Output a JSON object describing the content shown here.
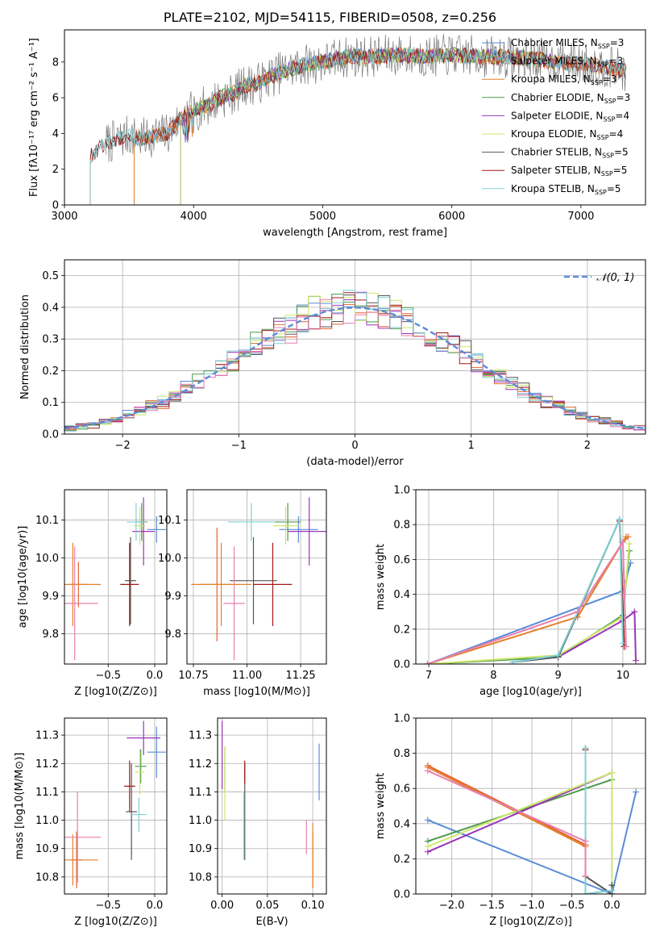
{
  "page_title": "PLATE=2102, MJD=54115, FIBERID=0508, z=0.256",
  "colors": {
    "Chabrier MILES": "#5b8bd7",
    "Salpeter MILES": "#e3652f",
    "Kroupa MILES": "#e3812b",
    "Chabrier ELODIE": "#4d9a4d",
    "Salpeter ELODIE": "#9a35b8",
    "Kroupa ELODIE": "#cde86b",
    "Chabrier STELIB": "#555555",
    "Salpeter STELIB": "#a01818",
    "Kroupa STELIB": "#7fcfd3",
    "pink": "#e87fae",
    "normal": "#5b8bd7",
    "grid": "#b0b0b0"
  },
  "chart_data": [
    {
      "id": "spectrum",
      "type": "line",
      "xlabel": "wavelength [Angstrom, rest frame]",
      "ylabel": "Flux [fλ10⁻¹⁷ erg cm⁻² s⁻¹ A⁻¹]",
      "xlim": [
        3000,
        7500
      ],
      "ylim": [
        0,
        9.8
      ],
      "xticks": [
        3000,
        4000,
        5000,
        6000,
        7000
      ],
      "yticks": [
        0,
        2,
        4,
        6,
        8
      ],
      "grid": false,
      "legend_position": "top-right",
      "legend": [
        {
          "name": "Chabrier MILES, N",
          "sub": "SSP",
          "suffix": "=3",
          "color_key": "Chabrier MILES"
        },
        {
          "name": "Salpeter MILES, N",
          "sub": "SSP",
          "suffix": "=3",
          "color_key": "Salpeter MILES"
        },
        {
          "name": "Kroupa MILES, N",
          "sub": "SSP",
          "suffix": "=3",
          "color_key": "Kroupa MILES"
        },
        {
          "name": "Chabrier ELODIE, N",
          "sub": "SSP",
          "suffix": "=3",
          "color_key": "Chabrier ELODIE"
        },
        {
          "name": "Salpeter ELODIE, N",
          "sub": "SSP",
          "suffix": "=4",
          "color_key": "Salpeter ELODIE"
        },
        {
          "name": "Kroupa ELODIE, N",
          "sub": "SSP",
          "suffix": "=4",
          "color_key": "Kroupa ELODIE"
        },
        {
          "name": "Chabrier STELIB, N",
          "sub": "SSP",
          "suffix": "=5",
          "color_key": "Chabrier STELIB"
        },
        {
          "name": "Salpeter STELIB, N",
          "sub": "SSP",
          "suffix": "=5",
          "color_key": "Salpeter STELIB"
        },
        {
          "name": "Kroupa STELIB, N",
          "sub": "SSP",
          "suffix": "=5",
          "color_key": "Kroupa STELIB"
        }
      ],
      "continuum": {
        "x": [
          3200,
          3300,
          3400,
          3500,
          3600,
          3700,
          3800,
          3900,
          4000,
          4100,
          4200,
          4300,
          4400,
          4500,
          4600,
          4700,
          4800,
          4900,
          5000,
          5200,
          5400,
          5600,
          5800,
          6000,
          6200,
          6400,
          6600,
          6800,
          7000,
          7200,
          7350
        ],
        "y": [
          2.7,
          3.4,
          3.6,
          3.9,
          3.7,
          3.9,
          4.0,
          4.8,
          5.3,
          5.5,
          6.0,
          6.2,
          6.7,
          6.8,
          7.2,
          7.5,
          7.7,
          7.9,
          8.0,
          8.3,
          8.3,
          8.4,
          8.3,
          8.4,
          8.3,
          8.3,
          8.2,
          8.0,
          7.9,
          7.7,
          7.5
        ]
      },
      "series": [
        {
          "name": "Chabrier MILES",
          "x_start": 3540,
          "x_end": 7350
        },
        {
          "name": "Salpeter MILES",
          "x_start": 3540,
          "x_end": 7350
        },
        {
          "name": "Kroupa MILES",
          "x_start": 3540,
          "x_end": 7350
        },
        {
          "name": "Chabrier ELODIE",
          "x_start": 3900,
          "x_end": 6800
        },
        {
          "name": "Salpeter ELODIE",
          "x_start": 3900,
          "x_end": 6800
        },
        {
          "name": "Kroupa ELODIE",
          "x_start": 3900,
          "x_end": 6800
        },
        {
          "name": "Chabrier STELIB",
          "x_start": 3200,
          "x_end": 7350
        },
        {
          "name": "Salpeter STELIB",
          "x_start": 3200,
          "x_end": 7350
        },
        {
          "name": "Kroupa STELIB",
          "x_start": 3200,
          "x_end": 7350
        }
      ],
      "data_series": {
        "name": "data",
        "x_start": 3320,
        "x_end": 7350
      }
    },
    {
      "id": "residuals",
      "type": "line",
      "xlabel": "(data-model)/error",
      "ylabel": "Normed distribution",
      "xlim": [
        -2.5,
        2.5
      ],
      "ylim": [
        0,
        0.55
      ],
      "xticks": [
        -2,
        -1,
        0,
        1,
        2
      ],
      "xtick_labels": [
        "−2",
        "−1",
        "0",
        "1",
        "2"
      ],
      "yticks": [
        0.0,
        0.1,
        0.2,
        0.3,
        0.4,
        0.5
      ],
      "grid": true,
      "bin_width": 0.1,
      "legend_position": "top-right",
      "legend": [
        {
          "name": "𝒩(0, 1)",
          "color_key": "normal"
        }
      ]
    },
    {
      "id": "age_vs_Z",
      "type": "scatter",
      "xlabel": "Z [log10(Z/Z⊙)]",
      "ylabel": "age  [log10(age/yr)]",
      "xlim": [
        -0.97,
        0.13
      ],
      "ylim": [
        9.72,
        10.18
      ],
      "xticks": [
        -0.5,
        0.0
      ],
      "xtick_labels": [
        "−0.5",
        "0.0"
      ],
      "yticks": [
        9.8,
        9.9,
        10.0,
        10.1
      ],
      "grid": true,
      "points": [
        {
          "c": "Chabrier MILES",
          "x": 0.02,
          "y": 10.075,
          "xerr": 0.1,
          "yerr": 0.035
        },
        {
          "c": "Salpeter MILES",
          "x": -0.82,
          "y": 9.93,
          "xerr": 0.1,
          "yerr": 0.06
        },
        {
          "c": "Kroupa MILES",
          "x": -0.88,
          "y": 9.93,
          "xerr": 0.3,
          "yerr": 0.11
        },
        {
          "c": "Chabrier ELODIE",
          "x": -0.14,
          "y": 10.095,
          "xerr": 0.06,
          "yerr": 0.05
        },
        {
          "c": "Salpeter ELODIE",
          "x": -0.12,
          "y": 10.07,
          "xerr": 0.12,
          "yerr": 0.09
        },
        {
          "c": "Kroupa ELODIE",
          "x": -0.16,
          "y": 10.085,
          "xerr": 0.06,
          "yerr": 0.05
        },
        {
          "c": "Chabrier STELIB",
          "x": -0.26,
          "y": 9.94,
          "xerr": 0.06,
          "yerr": 0.115
        },
        {
          "c": "Salpeter STELIB",
          "x": -0.27,
          "y": 9.93,
          "xerr": 0.1,
          "yerr": 0.11
        },
        {
          "c": "Kroupa STELIB",
          "x": -0.2,
          "y": 10.095,
          "xerr": 0.1,
          "yerr": 0.05
        },
        {
          "c": "pink",
          "x": -0.86,
          "y": 9.88,
          "xerr": 0.25,
          "yerr": 0.15
        }
      ]
    },
    {
      "id": "age_vs_mass",
      "type": "scatter",
      "xlabel": "mass [log10(M/M⊙)]",
      "ylabel": "",
      "xlim": [
        10.72,
        11.37
      ],
      "ylim": [
        9.72,
        10.18
      ],
      "xticks": [
        10.75,
        11.0,
        11.25
      ],
      "xtick_labels": [
        "10.75",
        "11.00",
        "11.25"
      ],
      "yticks": [
        9.8,
        9.9,
        10.0,
        10.1
      ],
      "grid": true,
      "points": [
        {
          "c": "Chabrier MILES",
          "x": 11.24,
          "y": 10.075,
          "xerr": 0.09,
          "yerr": 0.035
        },
        {
          "c": "Salpeter MILES",
          "x": 10.86,
          "y": 9.93,
          "xerr": 0.08,
          "yerr": 0.15
        },
        {
          "c": "Kroupa MILES",
          "x": 10.88,
          "y": 9.93,
          "xerr": 0.14,
          "yerr": 0.11
        },
        {
          "c": "Chabrier ELODIE",
          "x": 11.19,
          "y": 10.095,
          "xerr": 0.06,
          "yerr": 0.05
        },
        {
          "c": "Salpeter ELODIE",
          "x": 11.29,
          "y": 10.07,
          "xerr": 0.1,
          "yerr": 0.09
        },
        {
          "c": "Kroupa ELODIE",
          "x": 11.18,
          "y": 10.085,
          "xerr": 0.06,
          "yerr": 0.05
        },
        {
          "c": "Chabrier STELIB",
          "x": 11.03,
          "y": 9.94,
          "xerr": 0.11,
          "yerr": 0.115
        },
        {
          "c": "Salpeter STELIB",
          "x": 11.12,
          "y": 9.93,
          "xerr": 0.09,
          "yerr": 0.11
        },
        {
          "c": "Kroupa STELIB",
          "x": 11.02,
          "y": 10.095,
          "xerr": 0.11,
          "yerr": 0.05
        },
        {
          "c": "pink",
          "x": 10.94,
          "y": 9.88,
          "xerr": 0.05,
          "yerr": 0.15
        }
      ]
    },
    {
      "id": "weight_vs_age",
      "type": "line",
      "xlabel": "age  [log10(age/yr)]",
      "ylabel": "mass weight",
      "xlim": [
        6.8,
        10.35
      ],
      "ylim": [
        0,
        1.0
      ],
      "xticks": [
        7,
        8,
        9,
        10
      ],
      "yticks": [
        0.0,
        0.2,
        0.4,
        0.6,
        0.8,
        1.0
      ],
      "grid": true,
      "series": [
        {
          "c": "Chabrier MILES",
          "x": [
            6.98,
            10.0,
            10.12
          ],
          "y": [
            0.0,
            0.42,
            0.58
          ]
        },
        {
          "c": "Salpeter MILES",
          "x": [
            9.3,
            10.0,
            10.08
          ],
          "y": [
            0.27,
            0.7,
            0.73
          ]
        },
        {
          "c": "Kroupa MILES",
          "x": [
            6.98,
            9.3,
            10.0,
            10.05
          ],
          "y": [
            0.0,
            0.27,
            0.7,
            0.73
          ]
        },
        {
          "c": "Chabrier ELODIE",
          "x": [
            6.98,
            9.0,
            10.0,
            10.1
          ],
          "y": [
            0.0,
            0.04,
            0.28,
            0.65
          ]
        },
        {
          "c": "Salpeter ELODIE",
          "x": [
            9.0,
            10.0,
            10.18,
            10.2
          ],
          "y": [
            0.04,
            0.25,
            0.3,
            0.02
          ]
        },
        {
          "c": "Kroupa ELODIE",
          "x": [
            6.98,
            9.0,
            10.0,
            10.1
          ],
          "y": [
            0.0,
            0.05,
            0.27,
            0.69
          ]
        },
        {
          "c": "Chabrier STELIB",
          "x": [
            8.3,
            9.0,
            9.95,
            10.02
          ],
          "y": [
            0.01,
            0.04,
            0.83,
            0.1
          ]
        },
        {
          "c": "Salpeter STELIB",
          "x": [
            9.95,
            10.02
          ],
          "y": [
            0.82,
            0.1
          ]
        },
        {
          "c": "Kroupa STELIB",
          "x": [
            8.3,
            9.0,
            9.95,
            10.0
          ],
          "y": [
            0.01,
            0.05,
            0.83,
            0.12
          ]
        },
        {
          "c": "pink",
          "x": [
            6.98,
            9.3,
            10.0,
            10.05
          ],
          "y": [
            0.0,
            0.3,
            0.7,
            0.1
          ]
        }
      ]
    },
    {
      "id": "mass_vs_Z",
      "type": "scatter",
      "xlabel": "Z [log10(Z/Z⊙)]",
      "ylabel": "mass [log10(M/M⊙)]",
      "xlim": [
        -0.97,
        0.13
      ],
      "ylim": [
        10.74,
        11.36
      ],
      "xticks": [
        -0.5,
        0.0
      ],
      "xtick_labels": [
        "−0.5",
        "0.0"
      ],
      "yticks": [
        10.8,
        10.9,
        11.0,
        11.1,
        11.2,
        11.3
      ],
      "grid": true,
      "points": [
        {
          "c": "Chabrier MILES",
          "x": 0.02,
          "y": 11.24,
          "xerr": 0.1,
          "yerr": 0.09
        },
        {
          "c": "Salpeter MILES",
          "x": -0.84,
          "y": 10.86,
          "xerr": 0.06,
          "yerr": 0.1
        },
        {
          "c": "Kroupa MILES",
          "x": -0.88,
          "y": 10.86,
          "xerr": 0.27,
          "yerr": 0.09
        },
        {
          "c": "Chabrier ELODIE",
          "x": -0.15,
          "y": 11.19,
          "xerr": 0.06,
          "yerr": 0.06
        },
        {
          "c": "Salpeter ELODIE",
          "x": -0.12,
          "y": 11.29,
          "xerr": 0.18,
          "yerr": 0.06
        },
        {
          "c": "Kroupa ELODIE",
          "x": -0.16,
          "y": 11.17,
          "xerr": 0.05,
          "yerr": 0.08
        },
        {
          "c": "Chabrier STELIB",
          "x": -0.25,
          "y": 11.03,
          "xerr": 0.06,
          "yerr": 0.17
        },
        {
          "c": "Salpeter STELIB",
          "x": -0.27,
          "y": 11.12,
          "xerr": 0.06,
          "yerr": 0.09
        },
        {
          "c": "Kroupa STELIB",
          "x": -0.17,
          "y": 11.02,
          "xerr": 0.08,
          "yerr": 0.06
        },
        {
          "c": "pink",
          "x": -0.83,
          "y": 10.94,
          "xerr": 0.25,
          "yerr": 0.16
        }
      ]
    },
    {
      "id": "mass_vs_EBV",
      "type": "scatter",
      "xlabel": "E(B-V)",
      "ylabel": "",
      "xlim": [
        -0.005,
        0.115
      ],
      "ylim": [
        10.74,
        11.36
      ],
      "xticks": [
        0.0,
        0.05,
        0.1
      ],
      "xtick_labels": [
        "0.00",
        "0.05",
        "0.10"
      ],
      "yticks": [
        10.8,
        10.9,
        11.0,
        11.1,
        11.2,
        11.3
      ],
      "grid": true,
      "points": [
        {
          "c": "Chabrier MILES",
          "x": 0.107,
          "y": 11.17,
          "xerr": 0,
          "yerr": 0.1
        },
        {
          "c": "Salpeter MILES",
          "x": 0.1,
          "y": 10.86,
          "xerr": 0,
          "yerr": 0.1
        },
        {
          "c": "Kroupa MILES",
          "x": 0.1,
          "y": 10.88,
          "xerr": 0,
          "yerr": 0.11
        },
        {
          "c": "Chabrier ELODIE",
          "x": 0.003,
          "y": 11.18,
          "xerr": 0,
          "yerr": 0.08
        },
        {
          "c": "Salpeter ELODIE",
          "x": 0.0,
          "y": 11.23,
          "xerr": 0,
          "yerr": 0.12
        },
        {
          "c": "Kroupa ELODIE",
          "x": 0.003,
          "y": 11.13,
          "xerr": 0,
          "yerr": 0.13
        },
        {
          "c": "Chabrier STELIB",
          "x": 0.025,
          "y": 11.03,
          "xerr": 0,
          "yerr": 0.17
        },
        {
          "c": "Salpeter STELIB",
          "x": 0.025,
          "y": 11.17,
          "xerr": 0,
          "yerr": 0.04
        },
        {
          "c": "Kroupa STELIB",
          "x": 0.024,
          "y": 10.98,
          "xerr": 0,
          "yerr": 0.12
        },
        {
          "c": "pink",
          "x": 0.093,
          "y": 10.94,
          "xerr": 0,
          "yerr": 0.06
        }
      ]
    },
    {
      "id": "weight_vs_Z",
      "type": "line",
      "xlabel": "Z [log10(Z/Z⊙)]",
      "ylabel": "mass weight",
      "xlim": [
        -2.45,
        0.42
      ],
      "ylim": [
        0,
        1.0
      ],
      "xticks": [
        -2.0,
        -1.5,
        -1.0,
        -0.5,
        0.0
      ],
      "xtick_labels": [
        "−2.0",
        "−1.5",
        "−1.0",
        "−0.5",
        "0.0"
      ],
      "yticks": [
        0.0,
        0.2,
        0.4,
        0.6,
        0.8,
        1.0
      ],
      "grid": true,
      "series": [
        {
          "c": "Chabrier MILES",
          "x": [
            -2.3,
            0.0,
            0.3
          ],
          "y": [
            0.42,
            0.0,
            0.58
          ]
        },
        {
          "c": "Salpeter MILES",
          "x": [
            -2.3,
            -0.33
          ],
          "y": [
            0.73,
            0.28
          ]
        },
        {
          "c": "Kroupa MILES",
          "x": [
            -2.3,
            -0.33
          ],
          "y": [
            0.72,
            0.27
          ]
        },
        {
          "c": "Chabrier ELODIE",
          "x": [
            -2.3,
            0.0
          ],
          "y": [
            0.3,
            0.65
          ]
        },
        {
          "c": "Salpeter ELODIE",
          "x": [
            -2.3,
            0.0
          ],
          "y": [
            0.24,
            0.69
          ]
        },
        {
          "c": "Kroupa ELODIE",
          "x": [
            -2.3,
            0.0,
            0.0
          ],
          "y": [
            0.27,
            0.69,
            0.0
          ]
        },
        {
          "c": "Chabrier STELIB",
          "x": [
            -0.33,
            -0.33,
            0.0,
            0.0
          ],
          "y": [
            0.83,
            0.1,
            0.0,
            0.05
          ]
        },
        {
          "c": "Salpeter STELIB",
          "x": [
            -0.33,
            -0.33
          ],
          "y": [
            0.82,
            0.1
          ]
        },
        {
          "c": "Kroupa STELIB",
          "x": [
            -0.33,
            -0.33,
            0.0
          ],
          "y": [
            0.83,
            0.0,
            0.02
          ]
        },
        {
          "c": "pink",
          "x": [
            -2.3,
            -0.33,
            -0.33
          ],
          "y": [
            0.7,
            0.3,
            0.1
          ]
        }
      ]
    }
  ]
}
